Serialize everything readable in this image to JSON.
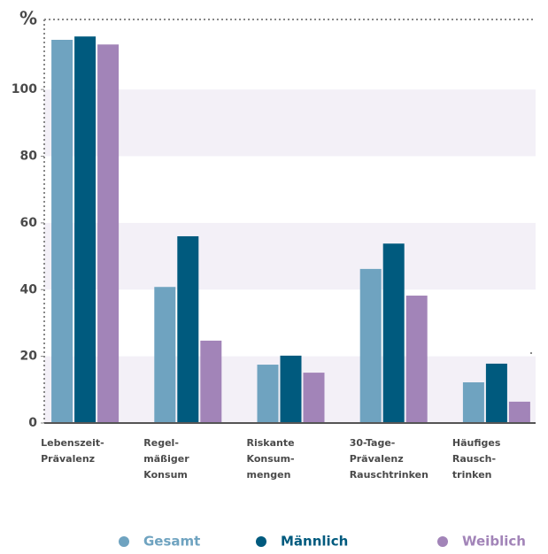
{
  "chart_data": {
    "type": "bar",
    "y_axis_label": "%",
    "categories": [
      [
        "Lebenszeit-",
        "Prävalenz"
      ],
      [
        "Regel-",
        "mäßiger",
        "Konsum"
      ],
      [
        "Riskante",
        "Konsum-",
        "mengen"
      ],
      [
        "30-Tage-",
        "Prävalenz",
        "Rauschtrinken"
      ],
      [
        "Häufiges",
        "Rausch-",
        "trinken"
      ]
    ],
    "series": [
      {
        "name": "Gesamt",
        "color": "#6fa3c0",
        "values": [
          114.9,
          40.8,
          17.5,
          46.2,
          12.2
        ]
      },
      {
        "name": "Männlich",
        "color": "#005a7e",
        "values": [
          115.9,
          56.0,
          20.2,
          53.8,
          17.8
        ]
      },
      {
        "name": "Weiblich",
        "color": "#a284b8",
        "values": [
          113.5,
          24.7,
          15.1,
          38.2,
          6.4
        ]
      }
    ],
    "ylim": [
      0,
      121
    ],
    "yticks": [
      0,
      20,
      40,
      60,
      80,
      100
    ],
    "grid": true
  }
}
